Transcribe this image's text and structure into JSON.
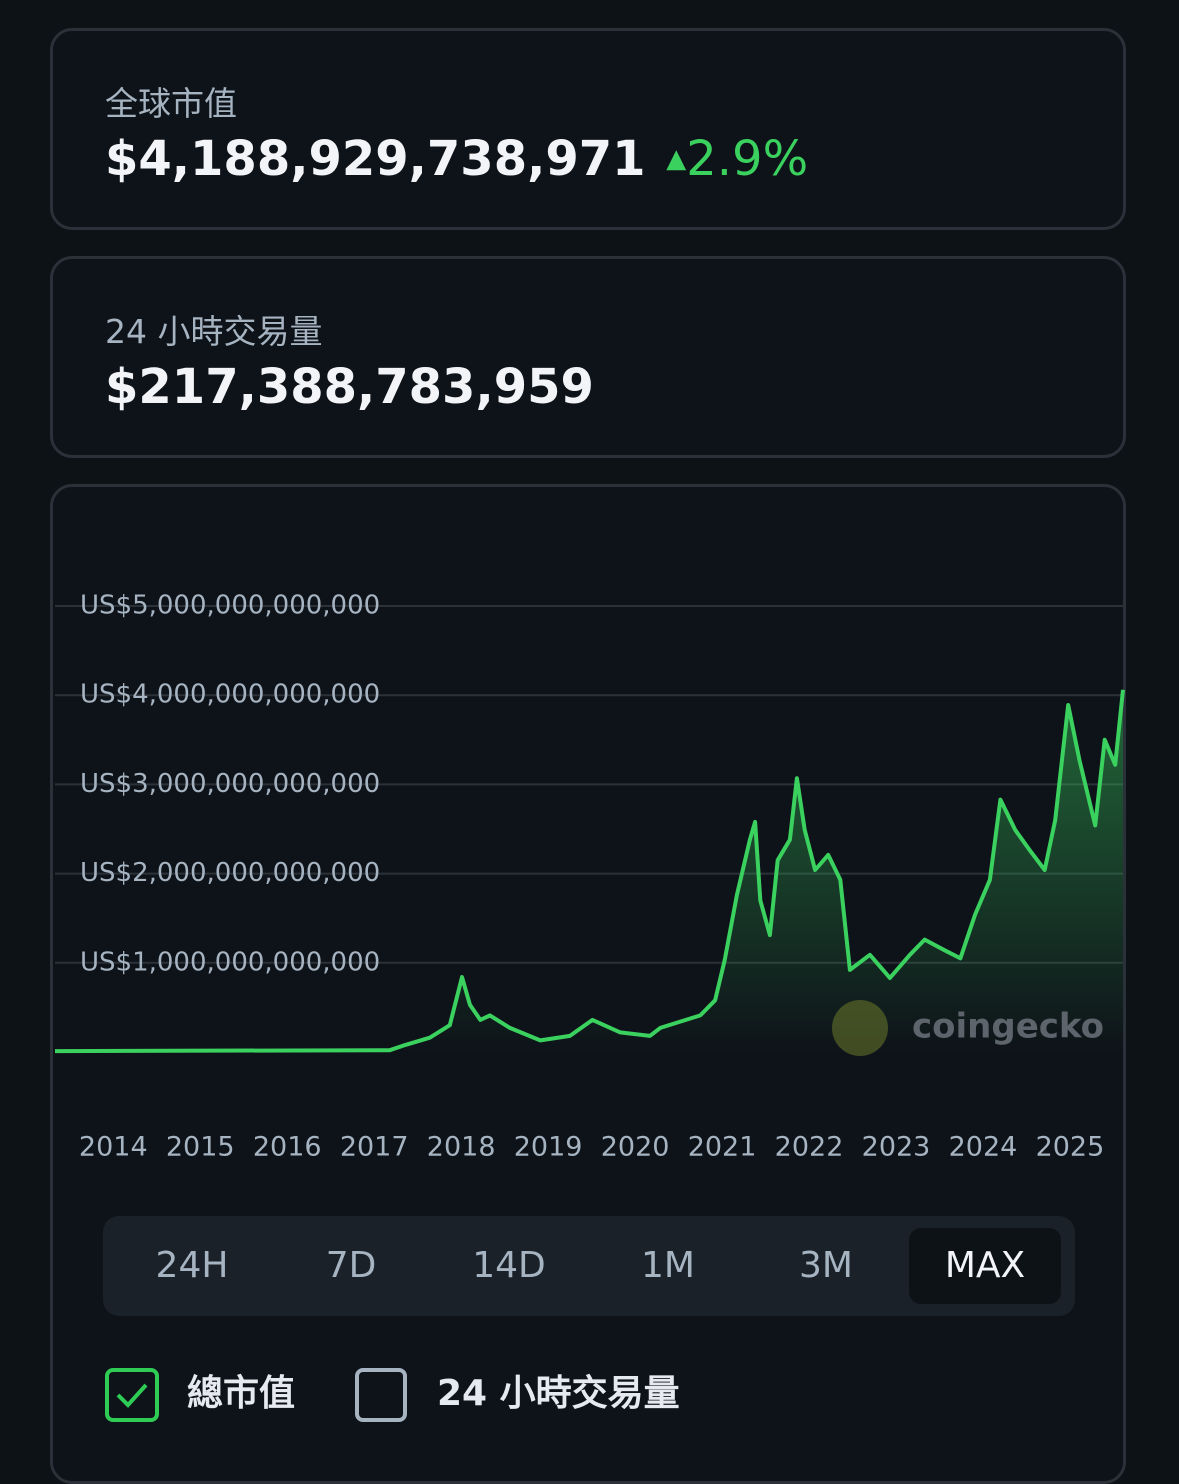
{
  "market_cap": {
    "label": "全球市值",
    "value": "$4,188,929,738,971",
    "change": "2.9%"
  },
  "volume": {
    "label": "24 小時交易量",
    "value": "$217,388,783,959"
  },
  "chart_data": {
    "type": "area",
    "watermark": "coingecko",
    "x": [
      2013.33,
      2017.18,
      2017.36,
      2017.64,
      2017.87,
      2018.01,
      2018.1,
      2018.22,
      2018.33,
      2018.56,
      2018.91,
      2019.25,
      2019.51,
      2019.83,
      2020.17,
      2020.29,
      2020.75,
      2020.92,
      2021.03,
      2021.17,
      2021.32,
      2021.38,
      2021.44,
      2021.55,
      2021.64,
      2021.78,
      2021.86,
      2021.95,
      2022.07,
      2022.22,
      2022.36,
      2022.47,
      2022.7,
      2022.93,
      2023.16,
      2023.33,
      2023.56,
      2023.74,
      2023.91,
      2024.08,
      2024.2,
      2024.37,
      2024.54,
      2024.71,
      2024.83,
      2024.98,
      2025.11,
      2025.29,
      2025.4,
      2025.52,
      2025.61
    ],
    "series": [
      {
        "name": "總市值",
        "color": "#3bd15f",
        "values": [
          10000000000.0,
          20000000000.0,
          80000000000.0,
          160000000000.0,
          300000000000.0,
          840000000000.0,
          530000000000.0,
          360000000000.0,
          410000000000.0,
          270000000000.0,
          130000000000.0,
          180000000000.0,
          360000000000.0,
          220000000000.0,
          180000000000.0,
          270000000000.0,
          410000000000.0,
          580000000000.0,
          1030000000000.0,
          1760000000000.0,
          2380000000000.0,
          2580000000000.0,
          1700000000000.0,
          1310000000000.0,
          2150000000000.0,
          2380000000000.0,
          3070000000000.0,
          2490000000000.0,
          2040000000000.0,
          2210000000000.0,
          1930000000000.0,
          920000000000.0,
          1090000000000.0,
          830000000000.0,
          1090000000000.0,
          1260000000000.0,
          1140000000000.0,
          1050000000000.0,
          1540000000000.0,
          1930000000000.0,
          2830000000000.0,
          2490000000000.0,
          2260000000000.0,
          2040000000000.0,
          2600000000000.0,
          3890000000000.0,
          3270000000000.0,
          2540000000000.0,
          3500000000000.0,
          3220000000000.0,
          4060000000000.0
        ]
      }
    ],
    "xlim": [
      2013.33,
      2025.61
    ],
    "xticks": [
      2014,
      2015,
      2016,
      2017,
      2018,
      2019,
      2020,
      2021,
      2022,
      2023,
      2024,
      2025
    ],
    "ylim": [
      0,
      5000000000000.0
    ],
    "yticks": [
      {
        "value": 1000000000000.0,
        "label": "US$1,000,000,000,000"
      },
      {
        "value": 2000000000000.0,
        "label": "US$2,000,000,000,000"
      },
      {
        "value": 3000000000000.0,
        "label": "US$3,000,000,000,000"
      },
      {
        "value": 4000000000000.0,
        "label": "US$4,000,000,000,000"
      },
      {
        "value": 5000000000000.0,
        "label": "US$5,000,000,000,000"
      }
    ],
    "grid": true
  },
  "timeframes": [
    "24H",
    "7D",
    "14D",
    "1M",
    "3M",
    "MAX"
  ],
  "selected_timeframe": 5,
  "unchecked_series": "24 小時交易量"
}
